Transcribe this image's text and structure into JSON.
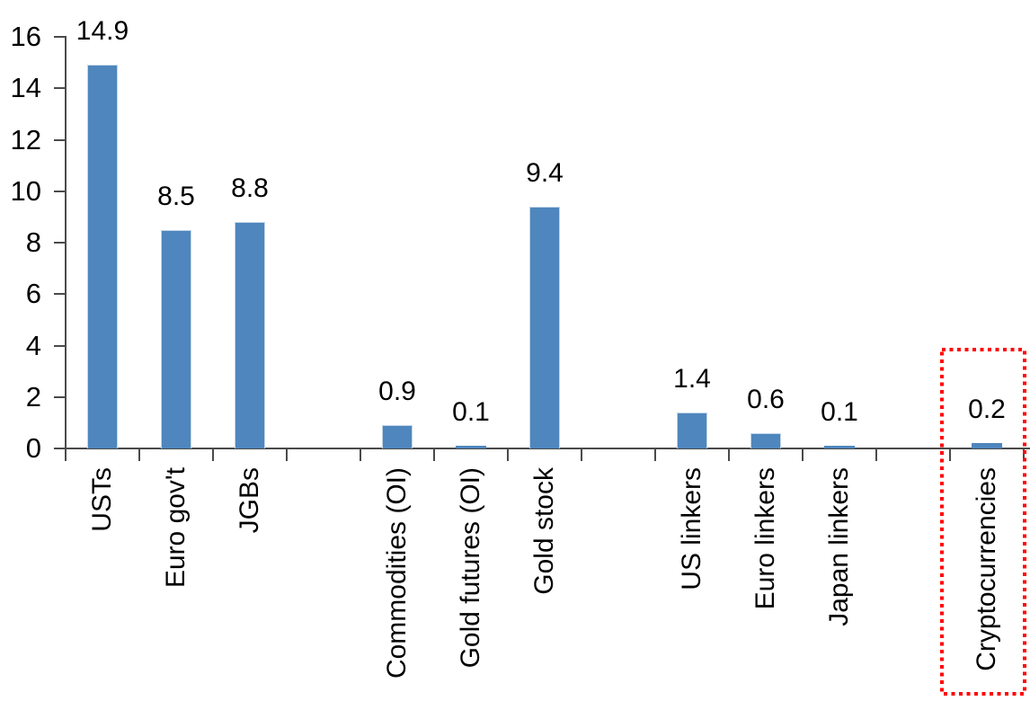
{
  "chart_data": {
    "type": "bar",
    "title": "",
    "xlabel": "",
    "ylabel": "",
    "categories": [
      "USTs",
      "Euro gov't",
      "JGBs",
      "",
      "Commodities (OI)",
      "Gold futures (OI)",
      "Gold stock",
      "",
      "US linkers",
      "Euro linkers",
      "Japan linkers",
      "",
      "Cryptocurrencies"
    ],
    "values": [
      14.9,
      8.5,
      8.8,
      null,
      0.9,
      0.1,
      9.4,
      null,
      1.4,
      0.6,
      0.1,
      null,
      0.2
    ],
    "value_labels": [
      "14.9",
      "8.5",
      "8.8",
      "",
      "0.9",
      "0.1",
      "9.4",
      "",
      "1.4",
      "0.6",
      "0.1",
      "",
      "0.2"
    ],
    "ylim": [
      0,
      16
    ],
    "yticks": [
      0,
      2,
      4,
      6,
      8,
      10,
      12,
      14,
      16
    ],
    "grid": false,
    "legend_position": "none",
    "bar_color": "#4e86bd",
    "bar_border_color": "#c3d5e8",
    "axis_color": "#4a4a4a",
    "text_color": "#000000",
    "highlight": {
      "target_category": "Cryptocurrencies",
      "shape": "dotted-rectangle",
      "color": "#ff0000"
    }
  }
}
